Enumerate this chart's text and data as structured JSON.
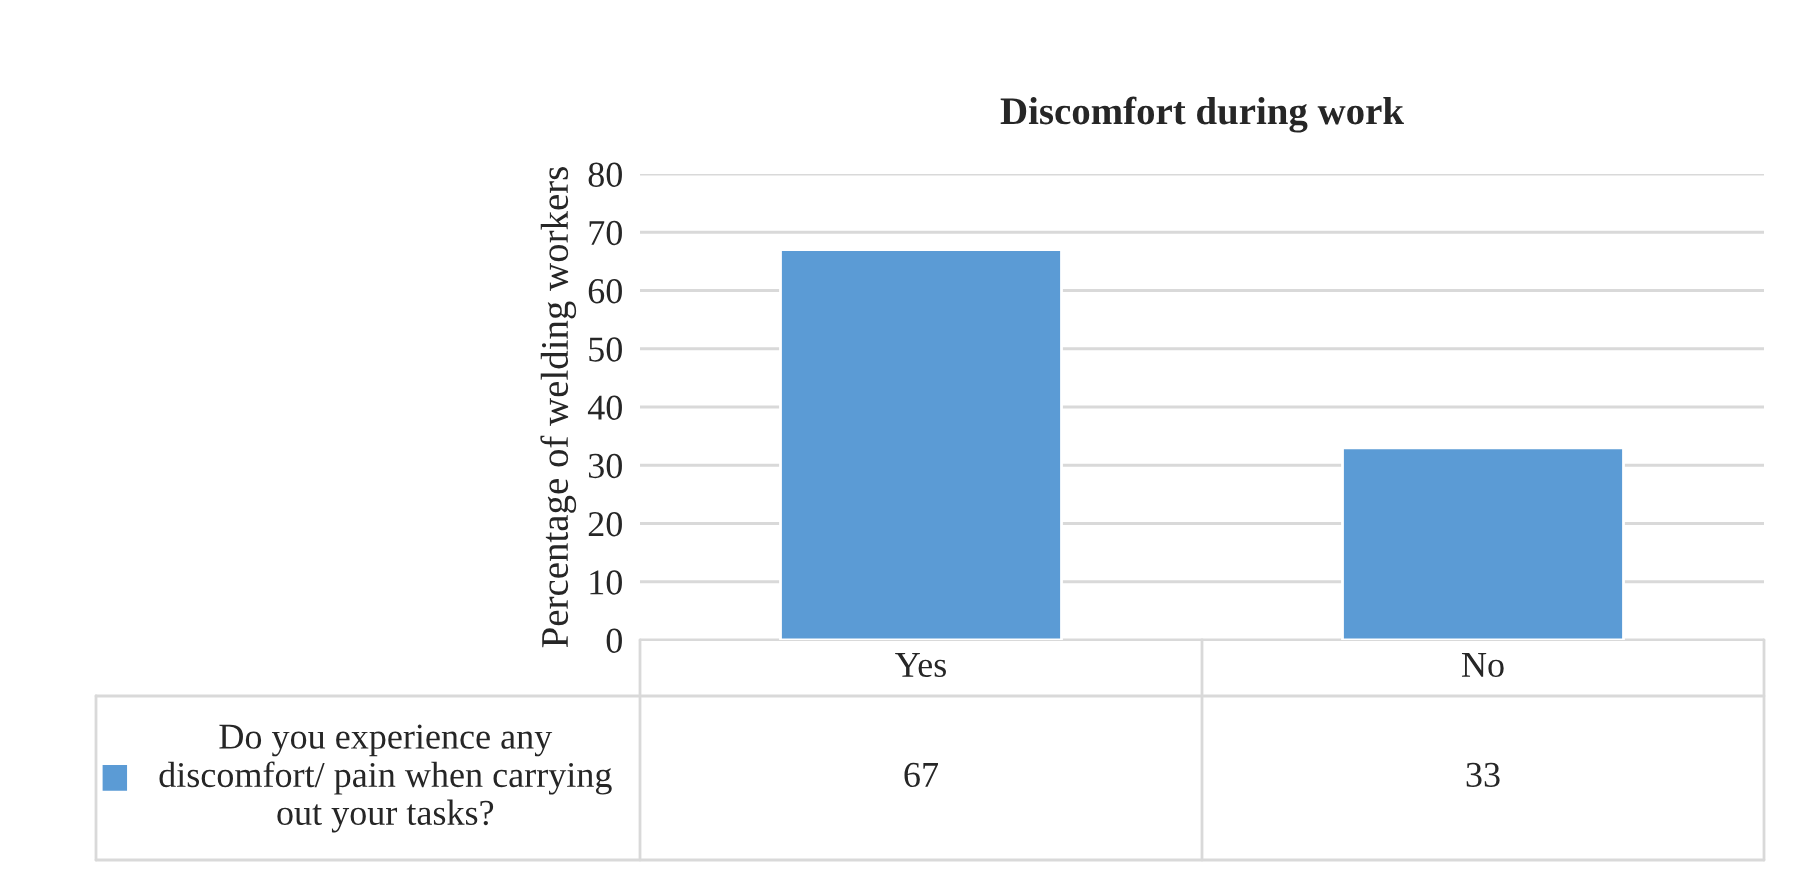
{
  "chart_data": {
    "type": "bar",
    "title": "Discomfort during work",
    "ylabel": "Percentage of welding workers",
    "categories": [
      "Yes",
      "No"
    ],
    "series": [
      {
        "name": "Do you experience any discomfort/ pain when carrying out your tasks?",
        "color": "#5b9bd5",
        "values": [
          67,
          33
        ]
      }
    ],
    "ylim": [
      0,
      80
    ],
    "yticks": [
      0,
      10,
      20,
      30,
      40,
      50,
      60,
      70,
      80
    ],
    "grid": "y",
    "legend": "bottom",
    "data_labels": true
  }
}
